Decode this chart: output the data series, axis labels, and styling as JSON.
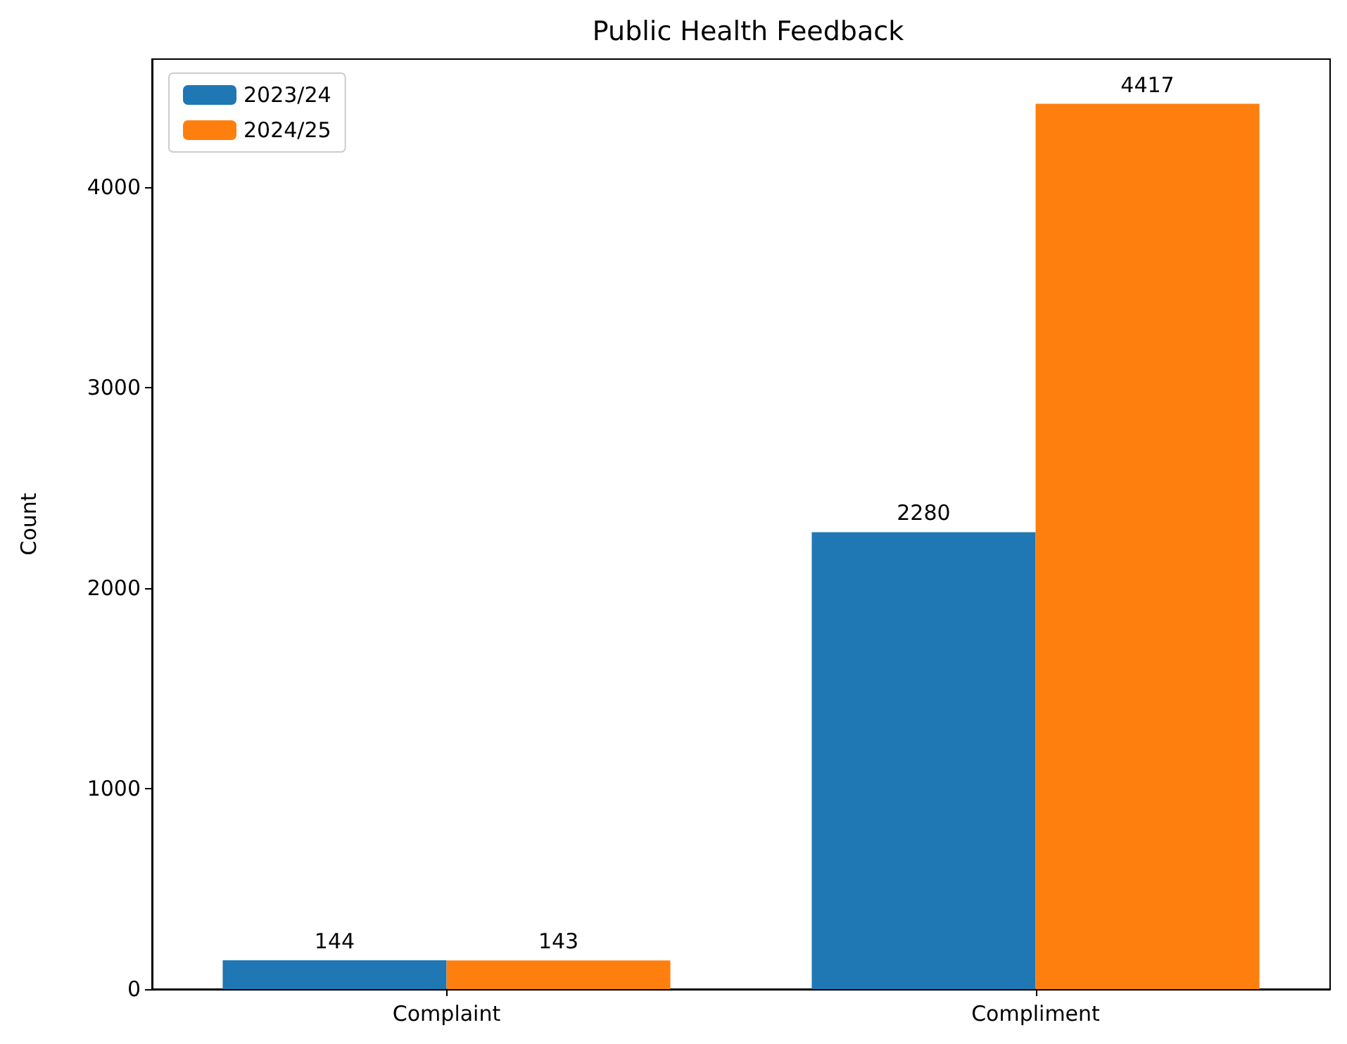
{
  "chart_data": {
    "type": "bar",
    "title": "Public Health Feedback",
    "ylabel": "Count",
    "categories": [
      "Complaint",
      "Compliment"
    ],
    "series": [
      {
        "name": "2023/24",
        "color": "#1f77b4",
        "values": [
          144,
          2280
        ]
      },
      {
        "name": "2024/25",
        "color": "#ff7f0e",
        "values": [
          143,
          4417
        ]
      }
    ],
    "ylim": [
      0,
      4640
    ],
    "yticks": [
      0,
      1000,
      2000,
      3000,
      4000
    ],
    "data_labels": true,
    "legend": "top left"
  }
}
